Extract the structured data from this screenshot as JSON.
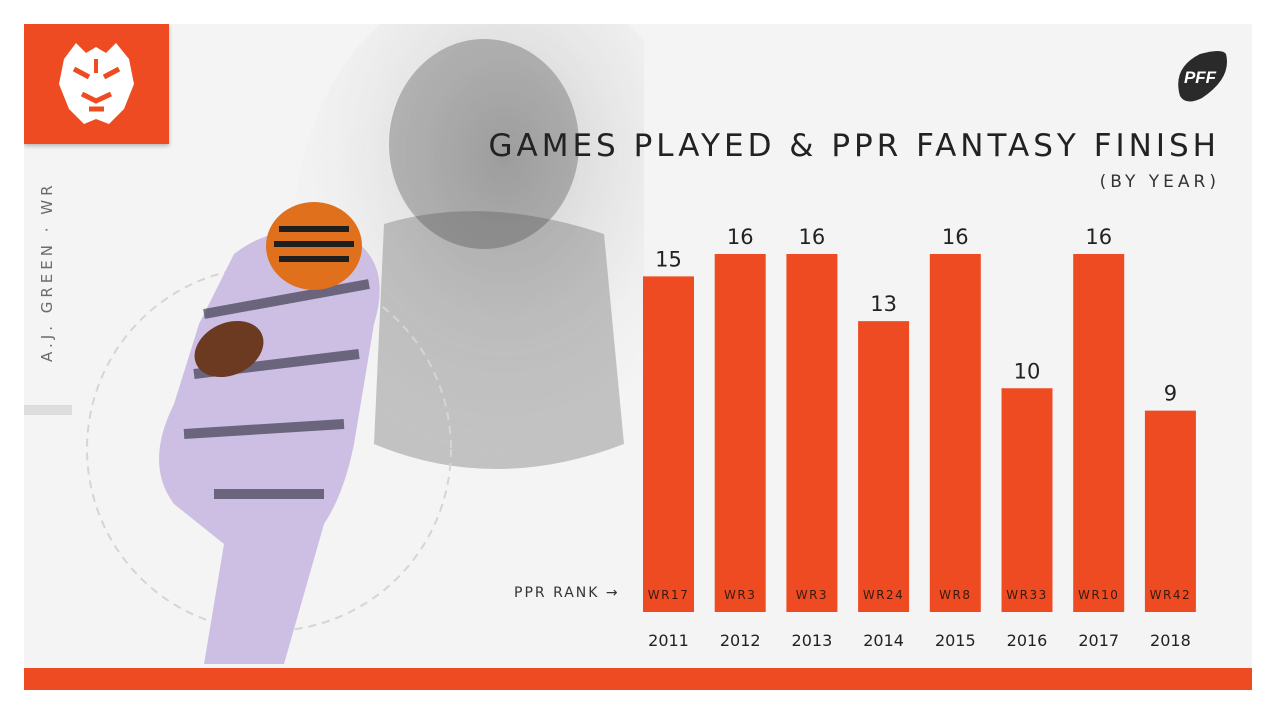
{
  "player": {
    "label": "A.J. GREEN · WR"
  },
  "brand": {
    "team_logo_icon": "tiger-head-icon",
    "publisher_logo_text": "PFF",
    "publisher_logo_icon": "football-icon",
    "accent": "#ee4b23"
  },
  "chart_data": {
    "type": "bar",
    "title": "GAMES PLAYED & PPR FANTASY FINISH",
    "subtitle": "(BY YEAR)",
    "categories": [
      "2011",
      "2012",
      "2013",
      "2014",
      "2015",
      "2016",
      "2017",
      "2018"
    ],
    "series": [
      {
        "values": [
          15,
          16,
          16,
          13,
          16,
          10,
          16,
          9
        ]
      }
    ],
    "bar_labels": [
      "WR17",
      "WR3",
      "WR3",
      "WR24",
      "WR8",
      "WR33",
      "WR10",
      "WR42"
    ],
    "rank_legend": "PPR RANK",
    "ylim": [
      0,
      16
    ],
    "grid": false,
    "legend": "none",
    "bar_color": "#ee4b23"
  }
}
